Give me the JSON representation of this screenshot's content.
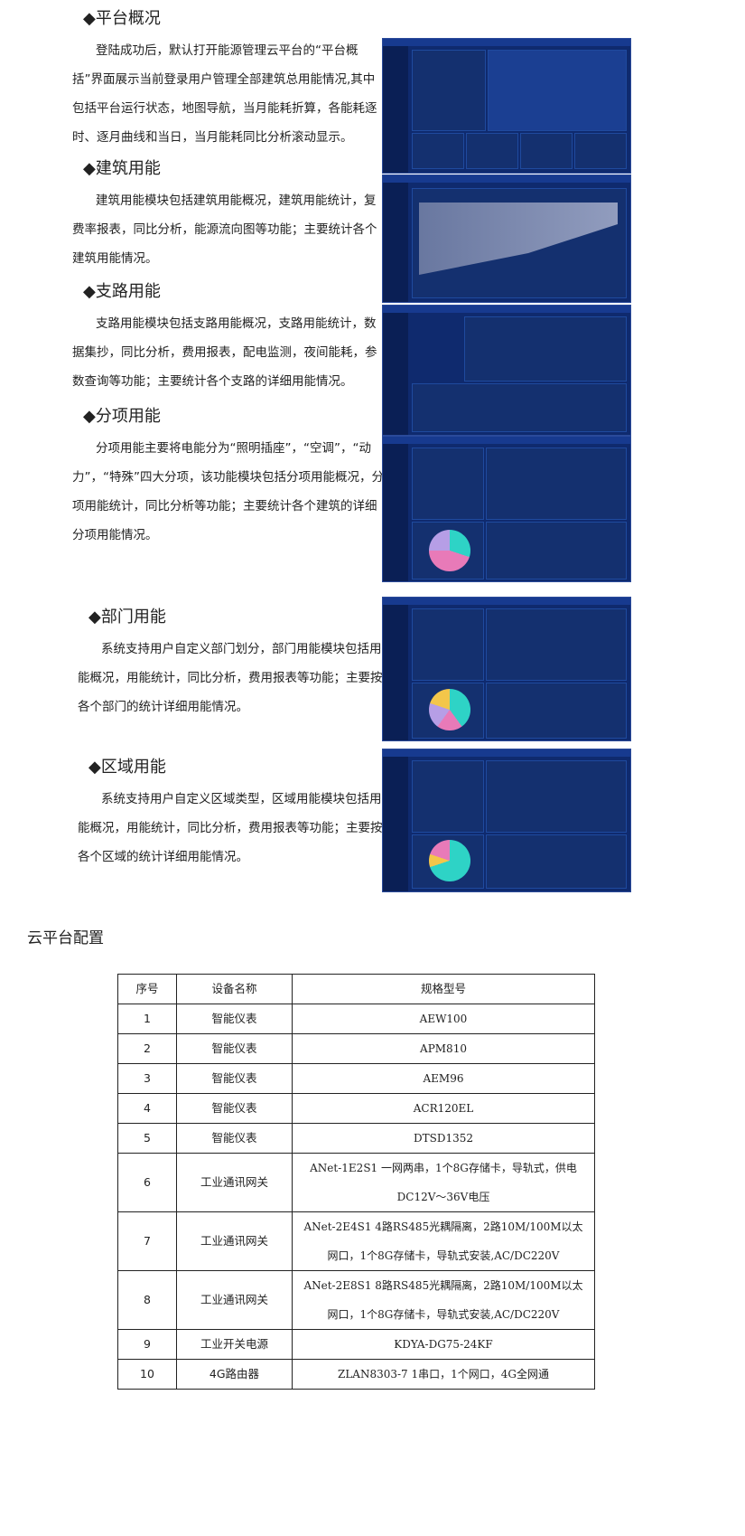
{
  "sections": [
    {
      "title": "◆平台概况",
      "body": "登陆成功后，默认打开能源管理云平台的“平台概括”界面展示当前登录用户管理全部建筑总用能情况,其中包括平台运行状态，地图导航，当月能耗折算，各能耗逐时、逐月曲线和当日，当月能耗同比分析滚动显示。"
    },
    {
      "title": "◆建筑用能",
      "body": "建筑用能模块包括建筑用能概况，建筑用能统计，复费率报表，同比分析，能源流向图等功能；主要统计各个建筑用能情况。"
    },
    {
      "title": "◆支路用能",
      "body": "支路用能模块包括支路用能概况，支路用能统计，数据集抄，同比分析，费用报表，配电监测，夜间能耗，参数查询等功能；主要统计各个支路的详细用能情况。"
    },
    {
      "title": "◆分项用能",
      "body": "分项用能主要将电能分为“照明插座”，“空调”，“动力”，“特殊”四大分项，该功能模块包括分项用能概况，分项用能统计，同比分析等功能；主要统计各个建筑的详细分项用能情况。"
    },
    {
      "title": "◆部门用能",
      "body": "系统支持用户自定义部门划分，部门用能模块包括用能概况，用能统计，同比分析，费用报表等功能；主要按各个部门的统计详细用能情况。"
    },
    {
      "title": "◆区域用能",
      "body": "系统支持用户自定义区域类型，区域用能模块包括用能概况，用能统计，同比分析，费用报表等功能；主要按各个区域的统计详细用能情况。"
    }
  ],
  "config_title": "云平台配置",
  "table": {
    "headers": [
      "序号",
      "设备名称",
      "规格型号"
    ],
    "rows": [
      [
        "1",
        "智能仪表",
        "AEW100"
      ],
      [
        "2",
        "智能仪表",
        "APM810"
      ],
      [
        "3",
        "智能仪表",
        "AEM96"
      ],
      [
        "4",
        "智能仪表",
        "ACR120EL"
      ],
      [
        "5",
        "智能仪表",
        "DTSD1352"
      ],
      [
        "6",
        "工业通讯网关",
        "ANet-1E2S1 一网两串，1个8G存储卡，导轨式，供电DC12V～36V电压"
      ],
      [
        "7",
        "工业通讯网关",
        "ANet-2E4S1 4路RS485光耦隔离，2路10M/100M以太网口，1个8G存储卡，导轨式安装,AC/DC220V"
      ],
      [
        "8",
        "工业通讯网关",
        "ANet-2E8S1  8路RS485光耦隔离，2路10M/100M以太网口，1个8G存储卡，导轨式安装,AC/DC220V"
      ],
      [
        "9",
        "工业开关电源",
        "KDYA-DG75-24KF"
      ],
      [
        "10",
        "4G路由器",
        "ZLAN8303-7  1串口，1个网口，4G全网通"
      ]
    ]
  },
  "colors": {
    "dashboard_bg": "#0f2a6e",
    "accent_teal": "#2ed3c6",
    "accent_purple": "#b69ee6"
  }
}
